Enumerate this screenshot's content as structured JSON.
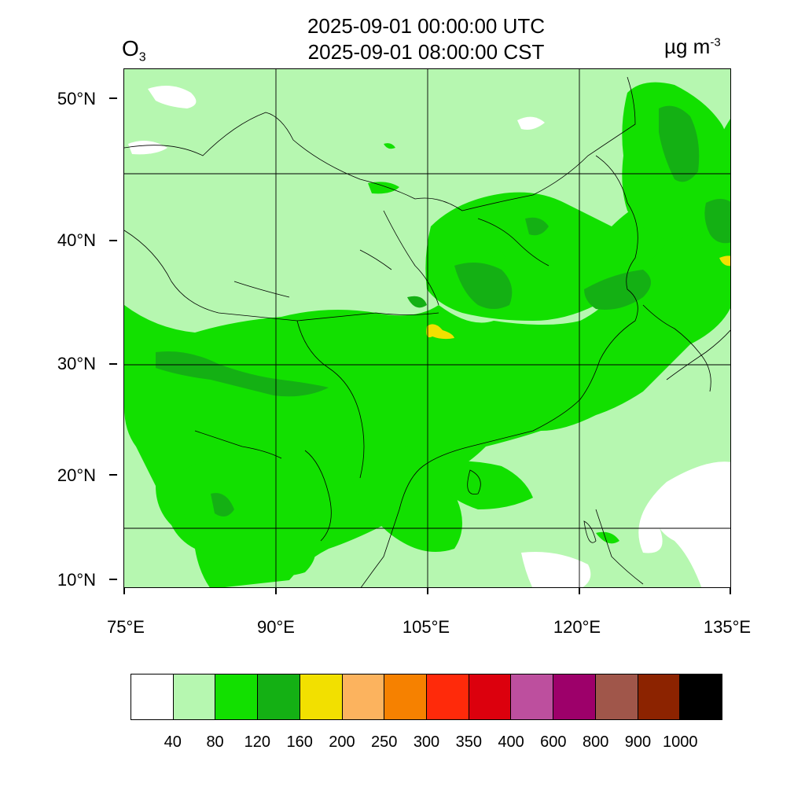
{
  "title_line1": "2025-09-01 00:00:00 UTC",
  "title_line2": "2025-09-01 08:00:00 CST",
  "species": {
    "base": "O",
    "sub": "3"
  },
  "units": {
    "base": "µg m",
    "sup": "-3"
  },
  "axes": {
    "lat_labels": [
      "50°N",
      "40°N",
      "30°N",
      "20°N",
      "10°N"
    ],
    "lon_labels": [
      "75°E",
      "90°E",
      "105°E",
      "120°E",
      "135°E"
    ]
  },
  "colorbar": {
    "colors": [
      "#ffffff",
      "#b6f7b0",
      "#12e000",
      "#14b014",
      "#f2e000",
      "#fcb35e",
      "#f68100",
      "#ff2a0a",
      "#dc000d",
      "#bd4f9e",
      "#9d006a",
      "#a0564a",
      "#8c2300",
      "#000000"
    ],
    "labels": [
      "40",
      "80",
      "120",
      "160",
      "200",
      "250",
      "300",
      "350",
      "400",
      "600",
      "800",
      "900",
      "1000"
    ]
  },
  "colors": {
    "background_land": "#b6f7b0",
    "band_80_120": "#12e000",
    "band_120_160": "#14b014",
    "band_160_200": "#f2e000"
  }
}
